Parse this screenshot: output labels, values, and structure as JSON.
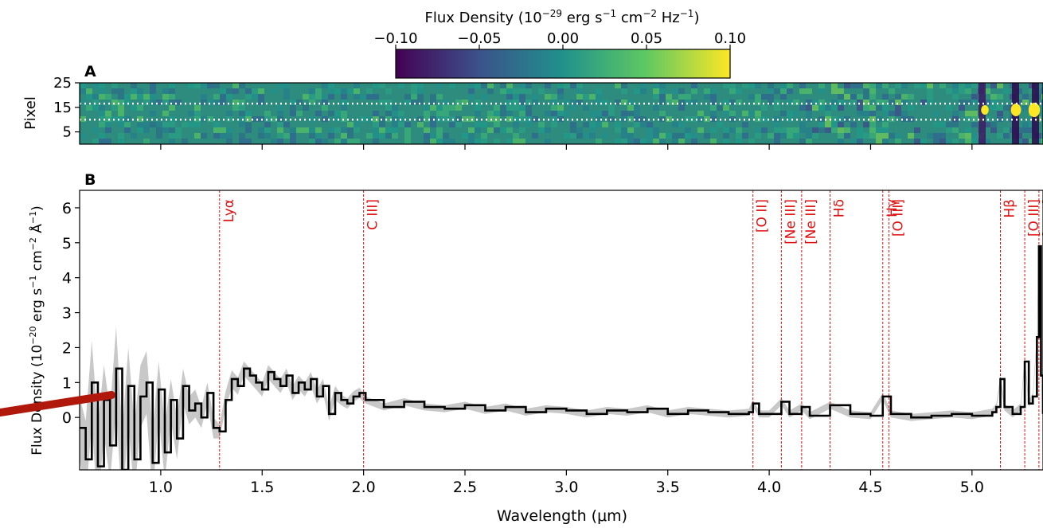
{
  "colorbar": {
    "title_prefix": "Flux Density (10",
    "title_exp1": "−29",
    "title_mid1": " erg s",
    "title_exp2": "−1",
    "title_mid2": " cm",
    "title_exp3": "−2",
    "title_mid3": " Hz",
    "title_exp4": "−1",
    "title_suffix": ")",
    "ticks": [
      "−0.10",
      "−0.05",
      "0.00",
      "0.05",
      "0.10"
    ],
    "range": [
      -0.1,
      0.1
    ],
    "colormap": "viridis",
    "colors": [
      "#440154",
      "#3b528b",
      "#21918c",
      "#5ec962",
      "#fde725"
    ]
  },
  "panel_a": {
    "label": "A",
    "ylabel": "Pixel",
    "yticks": [
      "25",
      "15",
      "5"
    ],
    "ytick_values": [
      25,
      15,
      5
    ],
    "ylim": [
      0,
      25
    ],
    "extraction_rows": [
      10,
      16.5
    ]
  },
  "panel_b": {
    "label": "B",
    "ylabel_prefix": "Flux Density (10",
    "ylabel_exp1": "−20",
    "ylabel_mid1": " erg s",
    "ylabel_exp2": "−1",
    "ylabel_mid2": " cm",
    "ylabel_exp3": "−2",
    "ylabel_mid3": " Å",
    "ylabel_exp4": "−1",
    "ylabel_suffix": ")",
    "xlabel": "Wavelength (μm)"
  },
  "chart_data": {
    "type": "line",
    "xlim": [
      0.6,
      5.35
    ],
    "ylim": [
      -1.5,
      6.5
    ],
    "xticks": [
      "1.0",
      "1.5",
      "2.0",
      "2.5",
      "3.0",
      "3.5",
      "4.0",
      "4.5",
      "5.0"
    ],
    "xtick_values": [
      1.0,
      1.5,
      2.0,
      2.5,
      3.0,
      3.5,
      4.0,
      4.5,
      5.0
    ],
    "yticks": [
      "6",
      "5",
      "4",
      "3",
      "2",
      "1",
      "0"
    ],
    "ytick_values": [
      6,
      5,
      4,
      3,
      2,
      1,
      0
    ],
    "lines": [
      {
        "label": "Lyα",
        "x": 1.29
      },
      {
        "label": "C III]",
        "x": 2.0
      },
      {
        "label": "[O II]",
        "x": 3.92
      },
      {
        "label": "[Ne III]",
        "x": 4.06
      },
      {
        "label": "[Ne III]",
        "x": 4.16
      },
      {
        "label": "Hδ",
        "x": 4.3
      },
      {
        "label": "Hγ",
        "x": 4.56
      },
      {
        "label": "[O III]",
        "x": 4.59
      },
      {
        "label": "Hβ",
        "x": 5.14
      },
      {
        "label": "[O III]",
        "x": 5.26
      },
      {
        "label": "[O III]",
        "x": 5.33
      }
    ],
    "spectrum": {
      "x": [
        0.6,
        0.63,
        0.66,
        0.69,
        0.72,
        0.75,
        0.78,
        0.81,
        0.84,
        0.87,
        0.9,
        0.93,
        0.96,
        0.99,
        1.02,
        1.05,
        1.08,
        1.11,
        1.14,
        1.17,
        1.2,
        1.23,
        1.26,
        1.29,
        1.32,
        1.35,
        1.38,
        1.41,
        1.44,
        1.47,
        1.5,
        1.53,
        1.56,
        1.59,
        1.62,
        1.65,
        1.68,
        1.71,
        1.74,
        1.77,
        1.8,
        1.83,
        1.86,
        1.89,
        1.92,
        1.95,
        1.98,
        2.01,
        2.1,
        2.2,
        2.3,
        2.4,
        2.5,
        2.6,
        2.7,
        2.8,
        2.9,
        3.0,
        3.1,
        3.2,
        3.3,
        3.4,
        3.5,
        3.6,
        3.7,
        3.8,
        3.9,
        3.92,
        3.95,
        4.0,
        4.06,
        4.1,
        4.16,
        4.2,
        4.3,
        4.4,
        4.5,
        4.56,
        4.6,
        4.7,
        4.8,
        4.9,
        5.0,
        5.1,
        5.12,
        5.14,
        5.16,
        5.2,
        5.24,
        5.26,
        5.28,
        5.3,
        5.32,
        5.33,
        5.34,
        5.35
      ],
      "y": [
        -0.3,
        -1.2,
        1.0,
        -1.4,
        0.5,
        -0.8,
        1.4,
        -1.5,
        0.9,
        -1.2,
        0.6,
        1.0,
        -1.3,
        0.8,
        -1.0,
        0.5,
        -0.6,
        0.9,
        0.2,
        0.4,
        0.0,
        0.7,
        -0.3,
        -0.4,
        0.5,
        1.1,
        0.9,
        1.4,
        1.2,
        1.0,
        0.8,
        1.3,
        1.1,
        0.9,
        1.2,
        0.7,
        1.0,
        0.8,
        1.1,
        0.6,
        0.9,
        0.1,
        0.7,
        0.5,
        0.4,
        0.6,
        0.7,
        0.5,
        0.3,
        0.45,
        0.3,
        0.25,
        0.35,
        0.2,
        0.3,
        0.15,
        0.25,
        0.2,
        0.1,
        0.2,
        0.15,
        0.25,
        0.1,
        0.2,
        0.15,
        0.1,
        0.15,
        0.4,
        0.1,
        0.1,
        0.45,
        0.1,
        0.3,
        0.05,
        0.35,
        0.1,
        0.05,
        0.6,
        0.1,
        0.0,
        0.05,
        0.1,
        0.05,
        0.15,
        0.3,
        1.1,
        0.3,
        0.1,
        0.3,
        1.6,
        0.4,
        0.6,
        2.3,
        4.9,
        1.2,
        0.1
      ],
      "uncertainty": [
        0.9,
        1.1,
        1.2,
        1.2,
        1.0,
        1.0,
        1.2,
        1.1,
        1.1,
        1.0,
        0.9,
        0.9,
        0.9,
        0.8,
        0.8,
        0.6,
        0.6,
        0.5,
        0.4,
        0.4,
        0.3,
        0.3,
        0.3,
        0.2,
        0.25,
        0.25,
        0.25,
        0.2,
        0.2,
        0.2,
        0.2,
        0.2,
        0.2,
        0.2,
        0.2,
        0.2,
        0.2,
        0.2,
        0.2,
        0.2,
        0.2,
        0.2,
        0.2,
        0.15,
        0.15,
        0.15,
        0.15,
        0.1,
        0.1,
        0.1,
        0.1,
        0.1,
        0.1,
        0.1,
        0.1,
        0.1,
        0.1,
        0.1,
        0.1,
        0.1,
        0.1,
        0.1,
        0.1,
        0.1,
        0.1,
        0.1,
        0.1,
        0.1,
        0.1,
        0.1,
        0.1,
        0.1,
        0.1,
        0.1,
        0.1,
        0.1,
        0.1,
        0.1,
        0.1,
        0.1,
        0.1,
        0.1,
        0.1,
        0.1,
        0.1,
        0.1,
        0.1,
        0.1,
        0.1,
        0.1,
        0.1,
        0.1,
        0.1,
        0.15,
        0.1,
        0.1
      ]
    },
    "colors": {
      "spectrum": "#000000",
      "uncertainty": "#c8c8c8",
      "lines": "#dd1111",
      "rows": "#ffffff"
    }
  }
}
